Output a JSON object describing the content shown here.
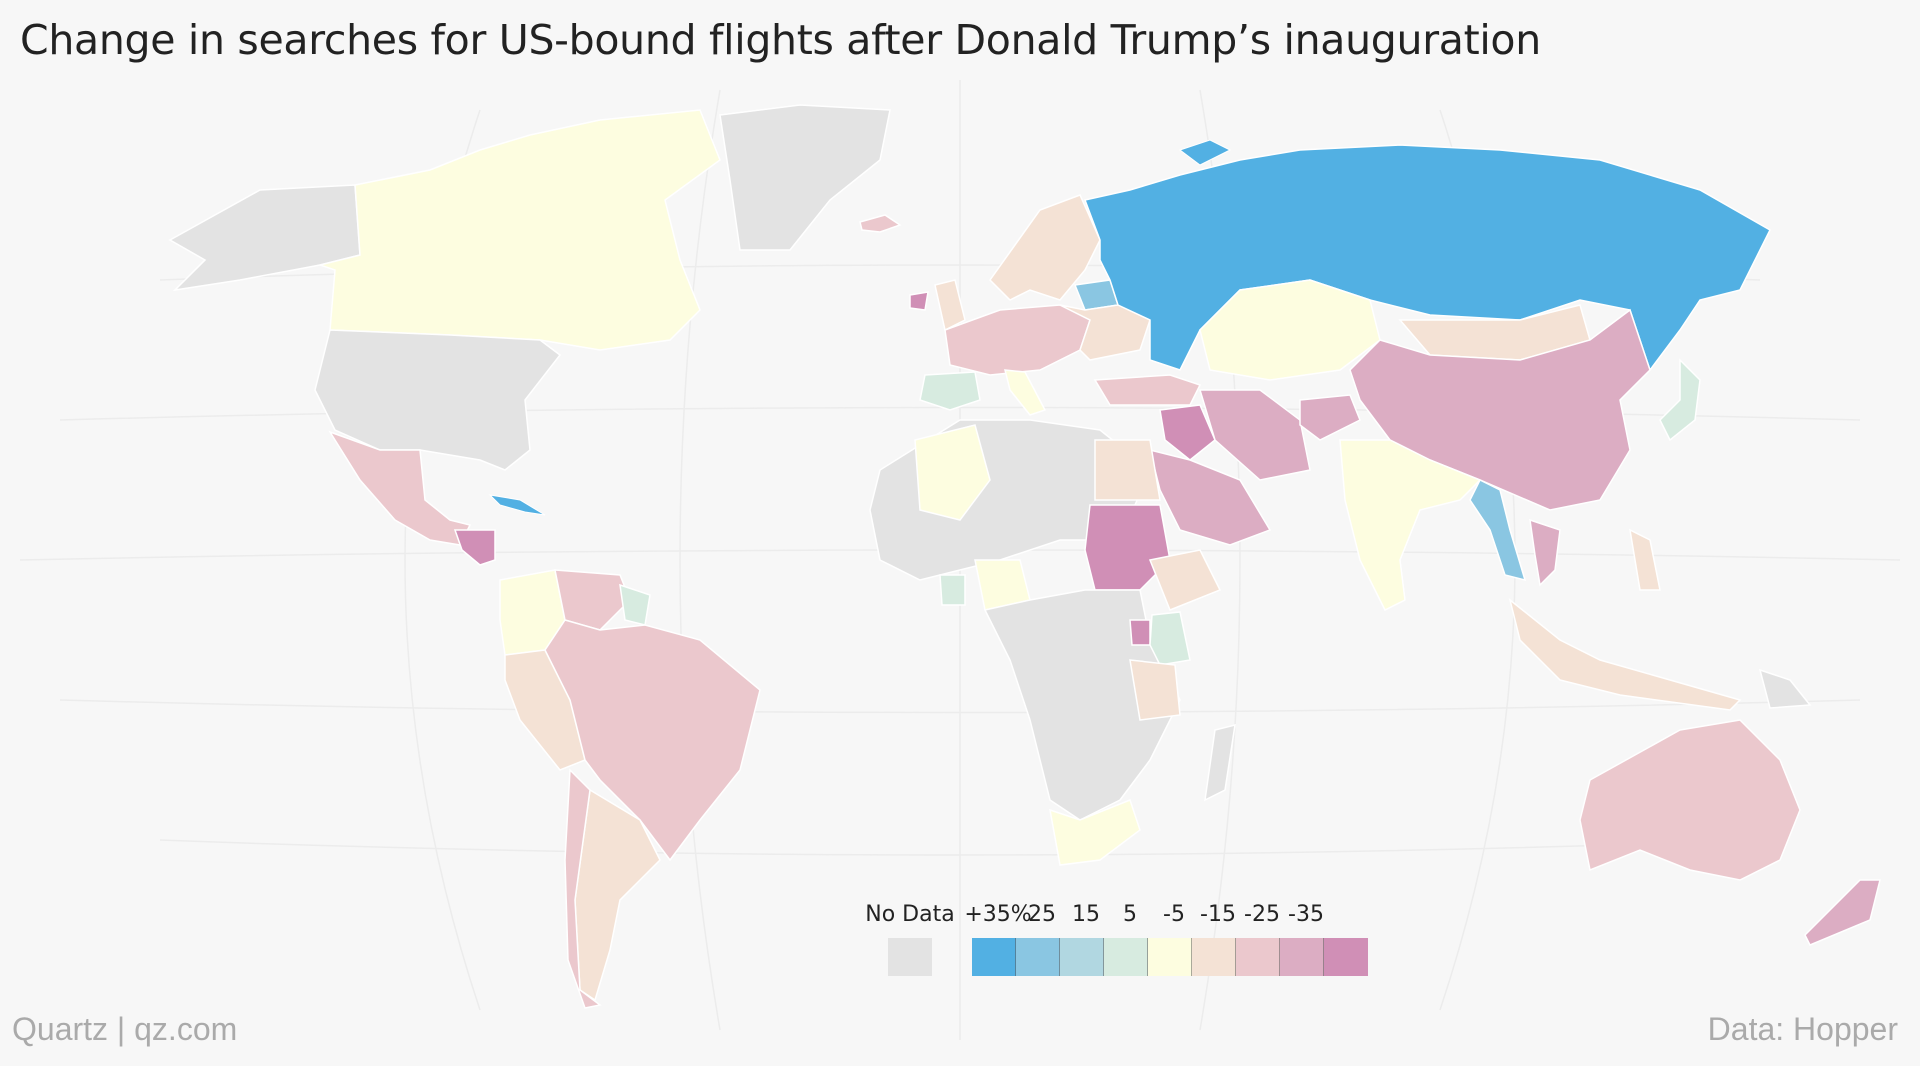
{
  "title": "Change in searches for US-bound flights after Donald Trump’s inauguration",
  "footer": {
    "source_left": "Quartz | qz.com",
    "source_right": "Data: Hopper"
  },
  "legend": {
    "no_data_label": "No Data",
    "no_data_color": "#e3e3e3",
    "bins": [
      {
        "label": "+35%",
        "color": "#52b0e3"
      },
      {
        "label": "25",
        "color": "#8ac6e2"
      },
      {
        "label": "15",
        "color": "#b1d7e1"
      },
      {
        "label": "5",
        "color": "#d7ebe0"
      },
      {
        "label": "-5",
        "color": "#fdfde0"
      },
      {
        "label": "-15",
        "color": "#f4e2d5"
      },
      {
        "label": "-25",
        "color": "#ebc8cd"
      },
      {
        "label": "-35",
        "color": "#dcadc3"
      },
      {
        "label": "",
        "color": "#d08fb6"
      }
    ]
  },
  "countries": [
    {
      "name": "Russia",
      "bin": "+35%"
    },
    {
      "name": "Cuba",
      "bin": "+35%"
    },
    {
      "name": "Myanmar",
      "bin": "25"
    },
    {
      "name": "Belarus",
      "bin": "25"
    },
    {
      "name": "Lebanon/Israel",
      "bin": "15"
    },
    {
      "name": "Spain",
      "bin": "5"
    },
    {
      "name": "Japan",
      "bin": "5"
    },
    {
      "name": "Kenya",
      "bin": "5"
    },
    {
      "name": "Ghana",
      "bin": "5"
    },
    {
      "name": "Guyana",
      "bin": "5"
    },
    {
      "name": "Canada",
      "bin": "-5"
    },
    {
      "name": "Kazakhstan",
      "bin": "-5"
    },
    {
      "name": "India",
      "bin": "-5"
    },
    {
      "name": "Algeria",
      "bin": "-5"
    },
    {
      "name": "Nigeria",
      "bin": "-5"
    },
    {
      "name": "South Africa",
      "bin": "-5"
    },
    {
      "name": "Colombia",
      "bin": "-5"
    },
    {
      "name": "Egypt",
      "bin": "-15"
    },
    {
      "name": "Ethiopia",
      "bin": "-15"
    },
    {
      "name": "Tanzania",
      "bin": "-15"
    },
    {
      "name": "Argentina",
      "bin": "-15"
    },
    {
      "name": "Peru",
      "bin": "-15"
    },
    {
      "name": "Mongolia",
      "bin": "-15"
    },
    {
      "name": "Indonesia",
      "bin": "-15"
    },
    {
      "name": "Brazil",
      "bin": "-25"
    },
    {
      "name": "Mexico",
      "bin": "-25"
    },
    {
      "name": "Australia",
      "bin": "-25"
    },
    {
      "name": "Venezuela",
      "bin": "-25"
    },
    {
      "name": "Turkey",
      "bin": "-25"
    },
    {
      "name": "China",
      "bin": "-35"
    },
    {
      "name": "Saudi Arabia",
      "bin": "-35"
    },
    {
      "name": "Iran",
      "bin": "-35"
    },
    {
      "name": "Afghanistan",
      "bin": "-35"
    },
    {
      "name": "Vietnam",
      "bin": "-35"
    },
    {
      "name": "Iraq",
      "bin": ""
    },
    {
      "name": "Sudan",
      "bin": ""
    },
    {
      "name": "Uganda",
      "bin": ""
    }
  ]
}
